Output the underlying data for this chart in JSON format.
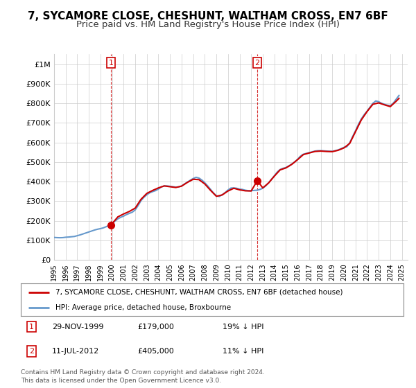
{
  "title": "7, SYCAMORE CLOSE, CHESHUNT, WALTHAM CROSS, EN7 6BF",
  "subtitle": "Price paid vs. HM Land Registry's House Price Index (HPI)",
  "title_fontsize": 11,
  "subtitle_fontsize": 9.5,
  "background_color": "#ffffff",
  "plot_bg_color": "#ffffff",
  "grid_color": "#cccccc",
  "ylim": [
    0,
    1050000
  ],
  "xlim_start": 1995.0,
  "xlim_end": 2025.5,
  "yticks": [
    0,
    100000,
    200000,
    300000,
    400000,
    500000,
    600000,
    700000,
    800000,
    900000,
    1000000
  ],
  "ytick_labels": [
    "£0",
    "£100K",
    "£200K",
    "£300K",
    "£400K",
    "£500K",
    "£600K",
    "£700K",
    "£800K",
    "£900K",
    "£1M"
  ],
  "xtick_years": [
    1995,
    1996,
    1997,
    1998,
    1999,
    2000,
    2001,
    2002,
    2003,
    2004,
    2005,
    2006,
    2007,
    2008,
    2009,
    2010,
    2011,
    2012,
    2013,
    2014,
    2015,
    2016,
    2017,
    2018,
    2019,
    2020,
    2021,
    2022,
    2023,
    2024,
    2025
  ],
  "sale1_x": 1999.91,
  "sale1_y": 179000,
  "sale1_label": "1",
  "sale2_x": 2012.53,
  "sale2_y": 405000,
  "sale2_label": "2",
  "sale_color": "#cc0000",
  "hpi_color": "#6699cc",
  "sale_line_color": "#cc0000",
  "legend_sale_label": "7, SYCAMORE CLOSE, CHESHUNT, WALTHAM CROSS, EN7 6BF (detached house)",
  "legend_hpi_label": "HPI: Average price, detached house, Broxbourne",
  "ann1_date": "29-NOV-1999",
  "ann1_price": "£179,000",
  "ann1_hpi": "19% ↓ HPI",
  "ann2_date": "11-JUL-2012",
  "ann2_price": "£405,000",
  "ann2_hpi": "11% ↓ HPI",
  "footer1": "Contains HM Land Registry data © Crown copyright and database right 2024.",
  "footer2": "This data is licensed under the Open Government Licence v3.0.",
  "hpi_data": [
    [
      1995.0,
      115000
    ],
    [
      1995.25,
      114000
    ],
    [
      1995.5,
      113500
    ],
    [
      1995.75,
      114000
    ],
    [
      1996.0,
      116000
    ],
    [
      1996.25,
      117000
    ],
    [
      1996.5,
      118500
    ],
    [
      1996.75,
      120000
    ],
    [
      1997.0,
      124000
    ],
    [
      1997.25,
      128000
    ],
    [
      1997.5,
      133000
    ],
    [
      1997.75,
      138000
    ],
    [
      1998.0,
      143000
    ],
    [
      1998.25,
      148000
    ],
    [
      1998.5,
      153000
    ],
    [
      1998.75,
      157000
    ],
    [
      1999.0,
      160000
    ],
    [
      1999.25,
      164000
    ],
    [
      1999.5,
      170000
    ],
    [
      1999.75,
      177000
    ],
    [
      2000.0,
      187000
    ],
    [
      2000.25,
      198000
    ],
    [
      2000.5,
      210000
    ],
    [
      2000.75,
      218000
    ],
    [
      2001.0,
      224000
    ],
    [
      2001.25,
      232000
    ],
    [
      2001.5,
      238000
    ],
    [
      2001.75,
      244000
    ],
    [
      2002.0,
      256000
    ],
    [
      2002.25,
      278000
    ],
    [
      2002.5,
      303000
    ],
    [
      2002.75,
      320000
    ],
    [
      2003.0,
      333000
    ],
    [
      2003.25,
      343000
    ],
    [
      2003.5,
      349000
    ],
    [
      2003.75,
      354000
    ],
    [
      2004.0,
      362000
    ],
    [
      2004.25,
      373000
    ],
    [
      2004.5,
      378000
    ],
    [
      2004.75,
      378000
    ],
    [
      2005.0,
      376000
    ],
    [
      2005.25,
      374000
    ],
    [
      2005.5,
      372000
    ],
    [
      2005.75,
      373000
    ],
    [
      2006.0,
      378000
    ],
    [
      2006.25,
      388000
    ],
    [
      2006.5,
      398000
    ],
    [
      2006.75,
      407000
    ],
    [
      2007.0,
      416000
    ],
    [
      2007.25,
      422000
    ],
    [
      2007.5,
      418000
    ],
    [
      2007.75,
      408000
    ],
    [
      2008.0,
      394000
    ],
    [
      2008.25,
      378000
    ],
    [
      2008.5,
      360000
    ],
    [
      2008.75,
      342000
    ],
    [
      2009.0,
      328000
    ],
    [
      2009.25,
      324000
    ],
    [
      2009.5,
      333000
    ],
    [
      2009.75,
      344000
    ],
    [
      2010.0,
      357000
    ],
    [
      2010.25,
      367000
    ],
    [
      2010.5,
      368000
    ],
    [
      2010.75,
      366000
    ],
    [
      2011.0,
      362000
    ],
    [
      2011.25,
      360000
    ],
    [
      2011.5,
      356000
    ],
    [
      2011.75,
      354000
    ],
    [
      2012.0,
      354000
    ],
    [
      2012.25,
      355000
    ],
    [
      2012.5,
      356000
    ],
    [
      2012.75,
      360000
    ],
    [
      2013.0,
      366000
    ],
    [
      2013.25,
      378000
    ],
    [
      2013.5,
      394000
    ],
    [
      2013.75,
      412000
    ],
    [
      2014.0,
      430000
    ],
    [
      2014.25,
      449000
    ],
    [
      2014.5,
      462000
    ],
    [
      2014.75,
      468000
    ],
    [
      2015.0,
      472000
    ],
    [
      2015.25,
      480000
    ],
    [
      2015.5,
      490000
    ],
    [
      2015.75,
      500000
    ],
    [
      2016.0,
      514000
    ],
    [
      2016.25,
      530000
    ],
    [
      2016.5,
      540000
    ],
    [
      2016.75,
      544000
    ],
    [
      2017.0,
      548000
    ],
    [
      2017.25,
      552000
    ],
    [
      2017.5,
      556000
    ],
    [
      2017.75,
      558000
    ],
    [
      2018.0,
      558000
    ],
    [
      2018.25,
      557000
    ],
    [
      2018.5,
      556000
    ],
    [
      2018.75,
      555000
    ],
    [
      2019.0,
      555000
    ],
    [
      2019.25,
      558000
    ],
    [
      2019.5,
      562000
    ],
    [
      2019.75,
      568000
    ],
    [
      2020.0,
      575000
    ],
    [
      2020.25,
      578000
    ],
    [
      2020.5,
      598000
    ],
    [
      2020.75,
      630000
    ],
    [
      2021.0,
      660000
    ],
    [
      2021.25,
      692000
    ],
    [
      2021.5,
      720000
    ],
    [
      2021.75,
      742000
    ],
    [
      2022.0,
      760000
    ],
    [
      2022.25,
      780000
    ],
    [
      2022.5,
      800000
    ],
    [
      2022.75,
      812000
    ],
    [
      2023.0,
      808000
    ],
    [
      2023.25,
      800000
    ],
    [
      2023.5,
      795000
    ],
    [
      2023.75,
      790000
    ],
    [
      2024.0,
      788000
    ],
    [
      2024.25,
      800000
    ],
    [
      2024.5,
      820000
    ],
    [
      2024.75,
      840000
    ]
  ],
  "sale_line_data": [
    [
      1999.91,
      179000
    ],
    [
      2000.5,
      220000
    ],
    [
      2001.0,
      235000
    ],
    [
      2001.5,
      248000
    ],
    [
      2002.0,
      265000
    ],
    [
      2002.5,
      310000
    ],
    [
      2003.0,
      340000
    ],
    [
      2003.5,
      355000
    ],
    [
      2004.0,
      368000
    ],
    [
      2004.5,
      378000
    ],
    [
      2005.0,
      374000
    ],
    [
      2005.5,
      370000
    ],
    [
      2006.0,
      377000
    ],
    [
      2006.5,
      396000
    ],
    [
      2007.0,
      412000
    ],
    [
      2007.5,
      410000
    ],
    [
      2008.0,
      388000
    ],
    [
      2008.5,
      355000
    ],
    [
      2009.0,
      325000
    ],
    [
      2009.5,
      332000
    ],
    [
      2010.0,
      352000
    ],
    [
      2010.5,
      366000
    ],
    [
      2011.0,
      358000
    ],
    [
      2011.5,
      353000
    ],
    [
      2012.0,
      352000
    ],
    [
      2012.53,
      405000
    ],
    [
      2013.0,
      368000
    ],
    [
      2013.5,
      393000
    ],
    [
      2014.0,
      428000
    ],
    [
      2014.5,
      460000
    ],
    [
      2015.0,
      470000
    ],
    [
      2015.5,
      488000
    ],
    [
      2016.0,
      512000
    ],
    [
      2016.5,
      538000
    ],
    [
      2017.0,
      546000
    ],
    [
      2017.5,
      554000
    ],
    [
      2018.0,
      556000
    ],
    [
      2018.5,
      554000
    ],
    [
      2019.0,
      553000
    ],
    [
      2019.5,
      560000
    ],
    [
      2020.0,
      572000
    ],
    [
      2020.5,
      595000
    ],
    [
      2021.0,
      655000
    ],
    [
      2021.5,
      715000
    ],
    [
      2022.0,
      758000
    ],
    [
      2022.5,
      795000
    ],
    [
      2023.0,
      802000
    ],
    [
      2023.5,
      792000
    ],
    [
      2024.0,
      783000
    ],
    [
      2024.5,
      810000
    ],
    [
      2024.75,
      825000
    ]
  ]
}
